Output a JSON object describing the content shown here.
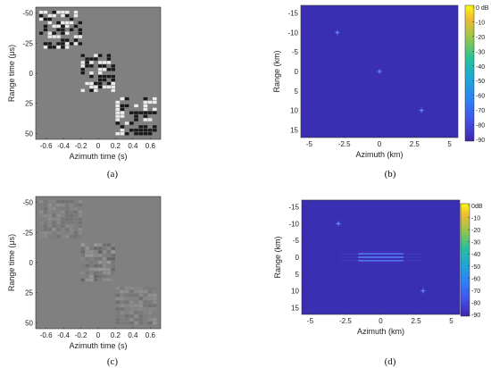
{
  "chart_data": [
    {
      "id": "a",
      "type": "heatmap",
      "caption": "(a)",
      "xlabel": "Azimuth time (s)",
      "ylabel": "Range time (μs)",
      "xticks": [
        "-0.6",
        "-0.4",
        "-0.2",
        "0",
        "0.2",
        "0.4",
        "0.6"
      ],
      "xtick_values": [
        -0.6,
        -0.4,
        -0.2,
        0,
        0.2,
        0.4,
        0.6
      ],
      "yticks": [
        "-50",
        "-25",
        "0",
        "25",
        "50"
      ],
      "ytick_values": [
        -50,
        -25,
        0,
        25,
        50
      ],
      "xlim": [
        -0.72,
        0.72
      ],
      "ylim": [
        -55,
        55
      ],
      "y_reversed": true,
      "background": "#808080",
      "blocks": [
        {
          "x0": -0.68,
          "x1": -0.18,
          "y0": -52,
          "y1": -20,
          "contrast": 1.0
        },
        {
          "x0": -0.2,
          "x1": 0.2,
          "y0": -16,
          "y1": 16,
          "contrast": 1.0
        },
        {
          "x0": 0.2,
          "x1": 0.68,
          "y0": 20,
          "y1": 52,
          "contrast": 1.0
        }
      ]
    },
    {
      "id": "b",
      "type": "heatmap",
      "caption": "(b)",
      "xlabel": "Azimuth (km)",
      "ylabel": "Range (km)",
      "xticks": [
        "-5",
        "-2.5",
        "0",
        "2.5",
        "5"
      ],
      "xtick_values": [
        -5,
        -2.5,
        0,
        2.5,
        5
      ],
      "yticks": [
        "-15",
        "-10",
        "-5",
        "0",
        "5",
        "10",
        "15"
      ],
      "ytick_values": [
        -15,
        -10,
        -5,
        0,
        5,
        10,
        15
      ],
      "xlim": [
        -5.6,
        5.6
      ],
      "ylim": [
        -17,
        17
      ],
      "y_reversed": true,
      "background": "#3a2fb3",
      "points": [
        {
          "x": -3,
          "y": -10
        },
        {
          "x": 0,
          "y": 0
        },
        {
          "x": 3,
          "y": 10
        }
      ],
      "colorbar": {
        "ticks": [
          "0 dB",
          "-10",
          "-20",
          "-30",
          "-40",
          "-50",
          "-60",
          "-70",
          "-80",
          "-90"
        ],
        "range": [
          -90,
          0
        ]
      }
    },
    {
      "id": "c",
      "type": "heatmap",
      "caption": "(c)",
      "xlabel": "Azimuth time (s)",
      "ylabel": "Range time (μs)",
      "xticks": [
        "-0.6",
        "-0.4",
        "-0.2",
        "0",
        "0.2",
        "0.4",
        "0.6"
      ],
      "xtick_values": [
        -0.6,
        -0.4,
        -0.2,
        0,
        0.2,
        0.4,
        0.6
      ],
      "yticks": [
        "-50",
        "-25",
        "0",
        "25",
        "50"
      ],
      "ytick_values": [
        -50,
        -25,
        0,
        25,
        50
      ],
      "xlim": [
        -0.72,
        0.72
      ],
      "ylim": [
        -55,
        55
      ],
      "y_reversed": true,
      "background": "#808080",
      "blocks": [
        {
          "x0": -0.68,
          "x1": -0.18,
          "y0": -52,
          "y1": -20,
          "contrast": 0.12
        },
        {
          "x0": -0.2,
          "x1": 0.2,
          "y0": -16,
          "y1": 16,
          "contrast": 0.22
        },
        {
          "x0": 0.2,
          "x1": 0.68,
          "y0": 20,
          "y1": 52,
          "contrast": 0.14
        }
      ]
    },
    {
      "id": "d",
      "type": "heatmap",
      "caption": "(d)",
      "xlabel": "Azimuth (km)",
      "ylabel": "Range (km)",
      "xticks": [
        "-5",
        "-2.5",
        "0",
        "2.5",
        "5"
      ],
      "xtick_values": [
        -5,
        -2.5,
        0,
        2.5,
        5
      ],
      "yticks": [
        "-15",
        "-10",
        "-5",
        "0",
        "5",
        "10",
        "15"
      ],
      "ytick_values": [
        -15,
        -10,
        -5,
        0,
        5,
        10,
        15
      ],
      "xlim": [
        -5.6,
        5.6
      ],
      "ylim": [
        -17,
        17
      ],
      "y_reversed": true,
      "background": "#3a2fb3",
      "points": [
        {
          "x": -3,
          "y": -10
        },
        {
          "x": 3,
          "y": 10
        }
      ],
      "streaks": [
        {
          "y": -1,
          "x0": -1.6,
          "x1": 1.6
        },
        {
          "y": 0,
          "x0": -1.6,
          "x1": 1.6
        },
        {
          "y": 1,
          "x0": -1.6,
          "x1": 1.6
        }
      ],
      "colorbar": {
        "ticks": [
          "0dB",
          "-10",
          "-20",
          "-30",
          "-40",
          "-50",
          "-60",
          "-70",
          "-80",
          "-90"
        ],
        "range": [
          -90,
          0
        ]
      }
    }
  ]
}
